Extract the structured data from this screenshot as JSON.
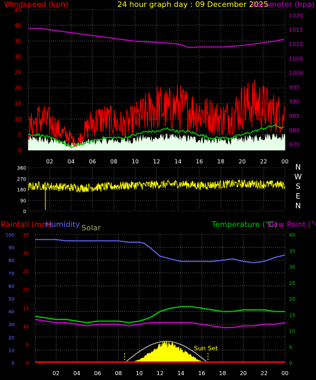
{
  "colors": {
    "background": "#000000",
    "grid": "#9a9a9a",
    "windspeed": "#ff0000",
    "gust": "#ff2020",
    "avgwind": "#00cc00",
    "calm": "#e8ffe8",
    "barometer": "#cc00cc",
    "direction": "#ffff00",
    "rain": "#ff0000",
    "humidity": "#6666ff",
    "solar": "#ffff00",
    "solar_label": "#aaaa66",
    "sunmax": "#c0c0c0",
    "temperature": "#00cc00",
    "dewpoint": "#cc00cc",
    "title": "#ffff00",
    "axis_text": "#ffffff"
  },
  "chart_data": [
    {
      "type": "line",
      "id": "wind-baro",
      "title": "24 hour graph day : 09 December 2025",
      "left_label": "Windspeed (kph)",
      "right_label": "Barometer (hpa)",
      "x_ticks": [
        "02",
        "04",
        "06",
        "08",
        "10",
        "12",
        "14",
        "16",
        "18",
        "20",
        "22",
        "00"
      ],
      "x_range": [
        0,
        24
      ],
      "y_left_ticks": [
        0,
        5,
        10,
        15,
        20,
        25,
        30,
        35,
        40,
        45
      ],
      "y_left_range": [
        0,
        45
      ],
      "y_right_ticks": [
        975,
        980,
        985,
        990,
        995,
        1000,
        1005,
        1010,
        1015,
        1020
      ],
      "y_right_range": [
        973,
        1022
      ],
      "grid": true,
      "series": [
        {
          "name": "Barometer",
          "axis": "right",
          "x": [
            0,
            1,
            2,
            3,
            4,
            5,
            6,
            7,
            8,
            9,
            10,
            11,
            12,
            13,
            14,
            14.5,
            15,
            16,
            17,
            18,
            19,
            20,
            21,
            22,
            23,
            24
          ],
          "values": [
            1015.5,
            1015.5,
            1015.0,
            1014.5,
            1014,
            1013.5,
            1013,
            1012.5,
            1012,
            1011.5,
            1011,
            1010.8,
            1010.6,
            1010.4,
            1010,
            1009.5,
            1008.8,
            1009,
            1009,
            1009,
            1009.2,
            1009.5,
            1010,
            1010.5,
            1011,
            1011.8
          ]
        },
        {
          "name": "Windspeed",
          "axis": "left",
          "x": [
            0,
            1,
            2,
            3,
            4,
            4.5,
            5,
            6,
            7,
            8,
            9,
            10,
            11,
            12,
            13,
            14,
            15,
            16,
            17,
            18,
            19,
            20,
            21,
            22,
            23,
            24
          ],
          "values": [
            7,
            10,
            9,
            6,
            4,
            2,
            5,
            9,
            10,
            9,
            8,
            10,
            12,
            14,
            13,
            14,
            13,
            12,
            11,
            10,
            11,
            14,
            15,
            14,
            12,
            11
          ]
        },
        {
          "name": "Average Wind",
          "axis": "left",
          "x": [
            0,
            1,
            2,
            3,
            4,
            5,
            6,
            7,
            8,
            9,
            10,
            11,
            12,
            13,
            14,
            15,
            16,
            17,
            18,
            19,
            20,
            21,
            22,
            23,
            24
          ],
          "values": [
            5,
            5,
            4,
            3,
            1,
            2,
            3,
            4,
            4,
            4,
            5,
            6,
            6,
            7,
            6,
            6,
            5,
            4,
            4,
            4,
            5,
            6,
            7,
            8,
            7
          ]
        }
      ]
    },
    {
      "type": "scatter",
      "id": "direction",
      "y_ticks": [
        "360",
        "270",
        "180",
        "90",
        "0"
      ],
      "y_range": [
        0,
        360
      ],
      "compass": [
        "N",
        "W",
        "S",
        "E",
        "N"
      ],
      "x_range": [
        0,
        24
      ],
      "series": [
        {
          "name": "Wind Direction",
          "x": [
            0,
            1,
            2,
            3,
            4,
            5,
            6,
            7,
            8,
            9,
            10,
            11,
            12,
            13,
            14,
            15,
            16,
            17,
            18,
            19,
            20,
            21,
            22,
            23,
            24
          ],
          "values": [
            200,
            210,
            205,
            200,
            195,
            190,
            195,
            200,
            205,
            210,
            215,
            215,
            220,
            220,
            225,
            220,
            210,
            215,
            220,
            225,
            225,
            225,
            220,
            220,
            215
          ]
        }
      ]
    },
    {
      "type": "line",
      "id": "rain-hum-temp",
      "labels": {
        "rainfall": "Rainfall (mm)",
        "humidity": "Humidity",
        "solar": "Solar",
        "temperature": "Temperature (°C)",
        "dewpoint": "Dew Point (°C)",
        "sunset": "Sun Set"
      },
      "x_ticks": [
        "02",
        "04",
        "06",
        "08",
        "10",
        "12",
        "14",
        "16",
        "18",
        "20",
        "22",
        "00"
      ],
      "x_range": [
        0,
        24
      ],
      "y_humidity_ticks": [
        0,
        10,
        20,
        30,
        40,
        50,
        60,
        70,
        80,
        90,
        100
      ],
      "y_humidity_range": [
        0,
        100
      ],
      "y_rain_ticks": [
        0,
        5,
        10,
        15,
        20,
        25,
        30,
        35
      ],
      "y_rain_range": [
        0,
        35
      ],
      "y_temp_ticks": [
        0,
        5,
        10,
        15,
        20,
        25,
        30,
        35,
        40
      ],
      "y_temp_range": [
        0,
        40
      ],
      "grid": true,
      "series": [
        {
          "name": "Humidity",
          "axis": "humidity",
          "x": [
            0,
            1,
            2,
            3,
            4,
            5,
            6,
            7,
            8,
            9,
            10,
            10.5,
            11,
            12,
            13,
            14,
            15,
            16,
            17,
            18,
            19,
            20,
            21,
            22,
            23,
            24
          ],
          "values": [
            96,
            96,
            96,
            95,
            95,
            95,
            95,
            95,
            95,
            94,
            94,
            93,
            90,
            83,
            81,
            79,
            79,
            79,
            79,
            80,
            81,
            79,
            78,
            79,
            82,
            84
          ]
        },
        {
          "name": "Temperature",
          "axis": "temp",
          "x": [
            0,
            1,
            2,
            3,
            4,
            5,
            6,
            7,
            8,
            9,
            10,
            11,
            12,
            13,
            14,
            15,
            16,
            17,
            18,
            19,
            20,
            21,
            22,
            23,
            24
          ],
          "values": [
            14.5,
            14,
            13.5,
            13.5,
            13,
            12.5,
            13,
            13,
            13,
            12.5,
            13,
            14,
            16,
            17,
            17.5,
            17.5,
            17,
            16.5,
            16,
            16,
            16.5,
            16.5,
            16.5,
            16,
            16
          ]
        },
        {
          "name": "Dew Point",
          "axis": "temp",
          "x": [
            0,
            1,
            2,
            3,
            4,
            5,
            6,
            7,
            8,
            9,
            10,
            11,
            12,
            13,
            14,
            15,
            16,
            17,
            18,
            19,
            20,
            21,
            22,
            23,
            24
          ],
          "values": [
            13.5,
            13,
            12.5,
            12.5,
            12,
            11.5,
            12,
            12,
            12,
            11.5,
            12,
            12.5,
            12.5,
            12.5,
            12.5,
            12.5,
            12,
            11.5,
            11,
            11,
            11.5,
            11.5,
            12,
            12,
            12.5
          ]
        },
        {
          "name": "Solar",
          "axis": "solar",
          "x": [
            8.6,
            9,
            9.5,
            10,
            10.5,
            11,
            11.5,
            12,
            12.5,
            13,
            13.5,
            14,
            14.5,
            15,
            15.5,
            16,
            16.5
          ],
          "values": [
            0,
            5,
            25,
            70,
            140,
            230,
            310,
            380,
            420,
            410,
            360,
            300,
            230,
            160,
            80,
            25,
            0
          ]
        }
      ],
      "sunrise": 8.6,
      "sunset": 16.6
    }
  ]
}
